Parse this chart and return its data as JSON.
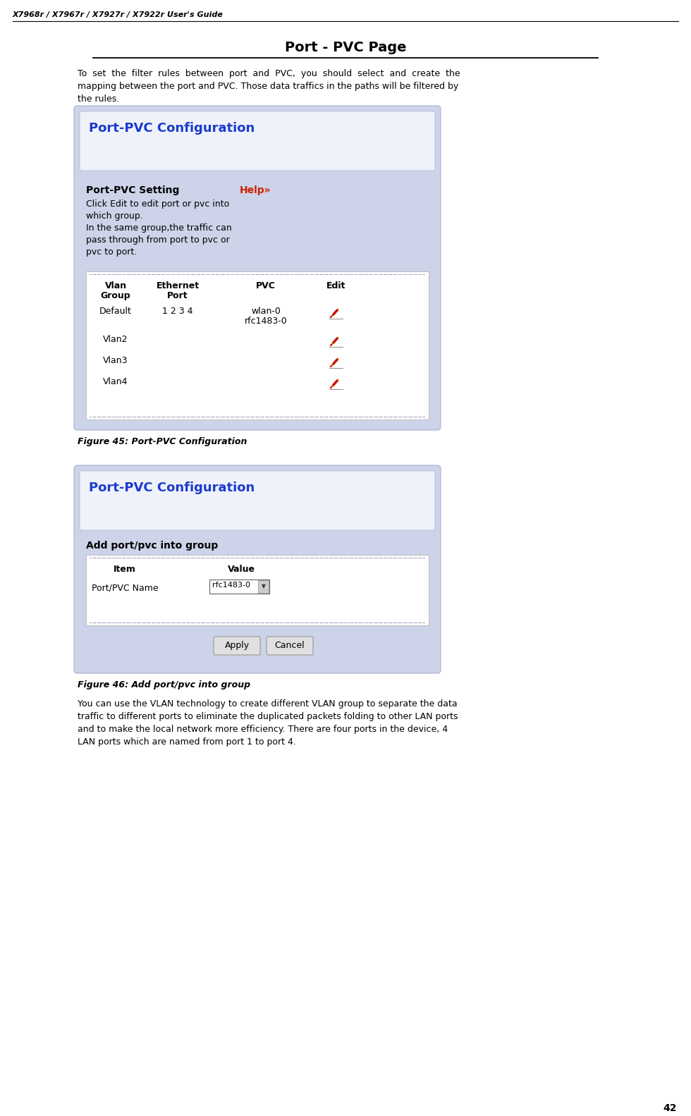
{
  "page_title": "X7968r / X7967r / X7927r / X7922r User's Guide",
  "section_title": "Port - PVC Page",
  "figure1_caption": "Figure 45: Port-PVC Configuration",
  "figure2_caption": "Figure 46: Add port/pvc into group",
  "page_number": "42",
  "bg_color": "#ffffff",
  "panel_bg": "#cdd3e8",
  "title_color": "#1a3bcc",
  "help_color": "#cc2200",
  "fig1_config_title": "Port-PVC Configuration",
  "fig1_setting_label": "Port-PVC Setting",
  "fig1_help_label": "Help»",
  "fig1_desc_lines": [
    "Click Edit to edit port or pvc into",
    "which group.",
    "In the same group,the traffic can",
    "pass through from port to pvc or",
    "pvc to port."
  ],
  "fig1_rows": [
    {
      "group": "Default",
      "port": "1 2 3 4",
      "pvc1": "wlan-0",
      "pvc2": "rfc1483-0"
    },
    {
      "group": "Vlan2",
      "port": "",
      "pvc1": "",
      "pvc2": ""
    },
    {
      "group": "Vlan3",
      "port": "",
      "pvc1": "",
      "pvc2": ""
    },
    {
      "group": "Vlan4",
      "port": "",
      "pvc1": "",
      "pvc2": ""
    }
  ],
  "fig2_config_title": "Port-PVC Configuration",
  "fig2_section_label": "Add port/pvc into group",
  "fig2_item": "Port/PVC Name",
  "fig2_value": "rfc1483-0",
  "fig2_btn1": "Apply",
  "fig2_btn2": "Cancel",
  "body1_lines": [
    "To  set  the  filter  rules  between  port  and  PVC,  you  should  select  and  create  the",
    "mapping between the port and PVC. Those data traffics in the paths will be filtered by",
    "the rules."
  ],
  "body2_lines": [
    "You can use the VLAN technology to create different VLAN group to separate the data",
    "traffic to different ports to eliminate the duplicated packets folding to other LAN ports",
    "and to make the local network more efficiency. There are four ports in the device, 4",
    "LAN ports which are named from port 1 to port 4."
  ]
}
